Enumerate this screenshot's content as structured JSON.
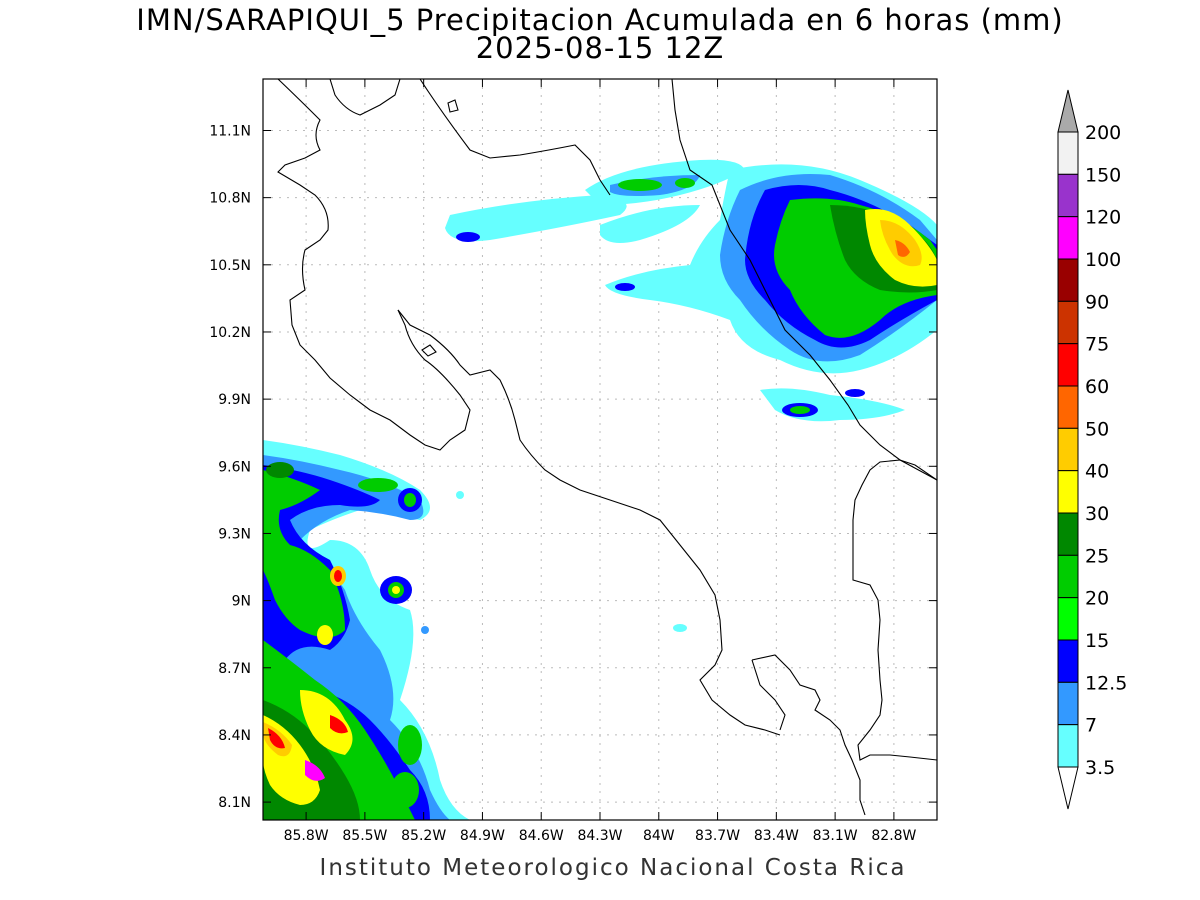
{
  "title": {
    "line1": "IMN/SARAPIQUI_5 Precipitacion Acumulada en 6 horas (mm)",
    "line2": "2025-08-15 12Z"
  },
  "footer": "Instituto Meteorologico Nacional Costa Rica",
  "axes": {
    "lon_ticks": [
      "85.8W",
      "85.5W",
      "85.2W",
      "84.9W",
      "84.6W",
      "84.3W",
      "84W",
      "83.7W",
      "83.4W",
      "83.1W",
      "82.8W"
    ],
    "lat_ticks": [
      "11.1N",
      "10.8N",
      "10.5N",
      "10.2N",
      "9.9N",
      "9.6N",
      "9.3N",
      "9N",
      "8.7N",
      "8.4N",
      "8.1N"
    ],
    "lon_range": [
      -86.02,
      -82.58
    ],
    "lat_range": [
      8.02,
      11.33
    ]
  },
  "colorbar": {
    "labels": [
      "3.5",
      "7",
      "12.5",
      "15",
      "20",
      "25",
      "30",
      "40",
      "50",
      "60",
      "75",
      "90",
      "100",
      "120",
      "150",
      "200"
    ],
    "colors": [
      "#ffffff",
      "#66ffff",
      "#3399ff",
      "#0000ff",
      "#00ff00",
      "#00cc00",
      "#008800",
      "#ffff00",
      "#ffcc00",
      "#ff6600",
      "#ff0000",
      "#cc3300",
      "#990000",
      "#ff00ff",
      "#9933cc",
      "#f2f2f2",
      "#aaaaaa"
    ]
  }
}
